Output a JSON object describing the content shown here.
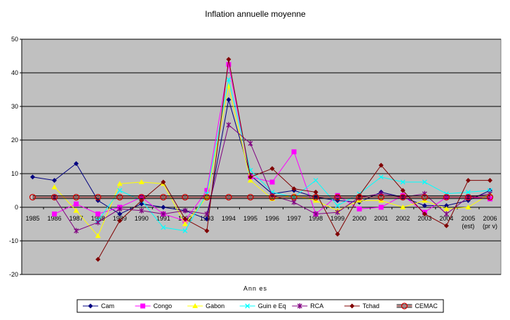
{
  "chart_data": {
    "type": "line",
    "title": "Inflation annuelle moyenne",
    "xlabel": "Ann es",
    "ylabel": "",
    "ylim": [
      -20,
      50
    ],
    "yticks": [
      -20,
      -10,
      0,
      10,
      20,
      30,
      40,
      50
    ],
    "grid": true,
    "legend_position": "bottom",
    "categories": [
      "1985",
      "1986",
      "1987",
      "1988",
      "1989",
      "1990",
      "1991",
      "1992",
      "1993",
      "1994",
      "1995",
      "1996",
      "1997",
      "1998",
      "1999",
      "2000",
      "2001",
      "2002",
      "2003",
      "2004",
      "2005",
      "2006"
    ],
    "category_sublabels": [
      "",
      "",
      "",
      "",
      "",
      "",
      "",
      "",
      "",
      "",
      "",
      "",
      "",
      "",
      "",
      "",
      "",
      "",
      "",
      "",
      "(est)",
      "(pr v)"
    ],
    "colors": {
      "plot_background": "#c0c0c0",
      "page_background": "#ffffff",
      "gridline": "#000000"
    },
    "series": [
      {
        "name": "Cam",
        "color": "#000080",
        "marker": "diamond",
        "values": [
          9,
          8,
          13,
          2,
          -2,
          1,
          0,
          -1,
          -3.5,
          32,
          9.5,
          4,
          5,
          3,
          2,
          1.5,
          4.5,
          3,
          0.5,
          0.5,
          2,
          5
        ]
      },
      {
        "name": "Congo",
        "color": "#ff00ff",
        "marker": "square",
        "values": [
          null,
          -2,
          1,
          -2,
          0,
          3,
          -2,
          -4,
          5,
          42.5,
          9,
          7.5,
          16.5,
          -2,
          3.5,
          -0.5,
          0,
          3.5,
          -1.5,
          3,
          3,
          2.5
        ]
      },
      {
        "name": "Gabon",
        "color": "#ffff00",
        "marker": "triangle",
        "values": [
          null,
          6,
          -1,
          -8.5,
          7,
          7.5,
          7,
          -5,
          3,
          36,
          8,
          2.5,
          3.5,
          2,
          -1,
          2,
          2,
          0,
          2,
          -0.5,
          0,
          4
        ]
      },
      {
        "name": "Guin e Eq",
        "color": "#00ffff",
        "marker": "x",
        "values": [
          null,
          null,
          null,
          -4,
          5,
          2,
          -6,
          -7,
          4,
          38,
          11,
          4.5,
          3,
          8,
          0.5,
          4,
          9,
          7.5,
          7.5,
          4,
          4.5,
          5
        ]
      },
      {
        "name": "RCA",
        "color": "#800080",
        "marker": "star",
        "values": [
          null,
          3,
          -7,
          -4.5,
          -0.5,
          -1,
          -2,
          -1,
          -2,
          24.5,
          19,
          3.5,
          1.5,
          -2,
          -1.5,
          3,
          4,
          3,
          4,
          -2,
          3,
          4
        ]
      },
      {
        "name": "Tchad",
        "color": "#800000",
        "marker": "diamond",
        "values": [
          null,
          null,
          null,
          -15.5,
          -4,
          2,
          7.5,
          -3.5,
          -7,
          44,
          9,
          11.5,
          5.5,
          4.5,
          -8,
          3.5,
          12.5,
          5,
          -2,
          -5.5,
          8,
          8
        ]
      },
      {
        "name": "CEMAC",
        "color": "#cc0000",
        "marker": "circle",
        "values": [
          3,
          3,
          3,
          3,
          3,
          3,
          3,
          3,
          3,
          3,
          3,
          3,
          3,
          3,
          3,
          3,
          3,
          3,
          3,
          3,
          3,
          3
        ]
      }
    ]
  }
}
